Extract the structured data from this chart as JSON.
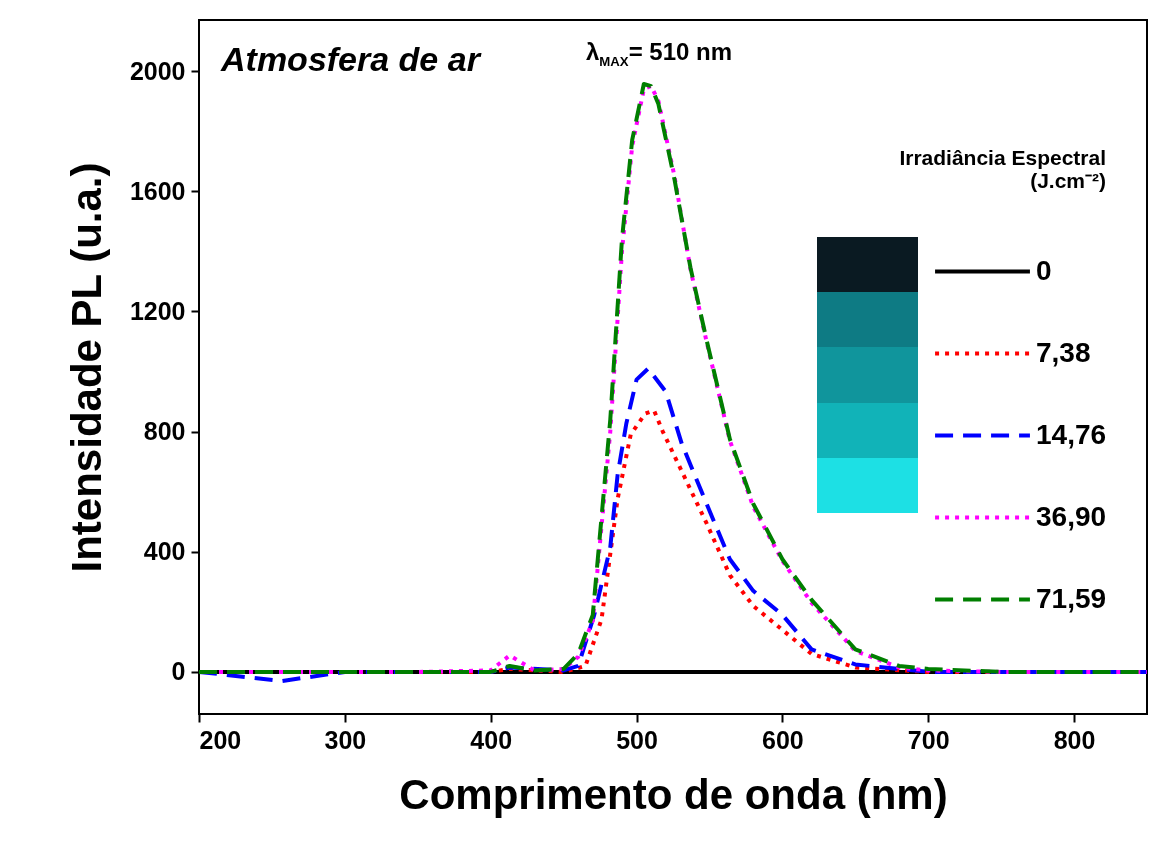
{
  "chart_data": {
    "type": "line",
    "xlabel": "Comprimento de onda (nm)",
    "ylabel": "Intensidade PL (u.a.)",
    "legend_title": "Irradiância Espectral (J.cm⁻²)",
    "legend": "right",
    "grid": false,
    "xlim": [
      200,
      850
    ],
    "ylim": [
      -140,
      2170
    ],
    "xticks": [
      200,
      300,
      400,
      500,
      600,
      700,
      800
    ],
    "yticks": [
      0,
      400,
      800,
      1200,
      1600,
      2000
    ],
    "annotations": [
      "Atmosfera de ar",
      "λ$_{MAX}$= 510 nm"
    ],
    "series": [
      {
        "name": "0",
        "color": "#000000",
        "line_style": "solid",
        "x": [
          200,
          850
        ],
        "values": [
          0,
          0
        ]
      },
      {
        "name": "7,38",
        "color": "#ff0000",
        "line_style": "dotted",
        "x": [
          200,
          300,
          400,
          413,
          450,
          465,
          476,
          487,
          496,
          506,
          512,
          518,
          531,
          548,
          564,
          580,
          600,
          620,
          650,
          700,
          850
        ],
        "values": [
          0,
          0,
          0,
          10,
          0,
          20,
          175,
          575,
          790,
          860,
          870,
          800,
          668,
          495,
          322,
          220,
          140,
          60,
          15,
          0,
          0
        ]
      },
      {
        "name": "14,76",
        "color": "#0000ff",
        "line_style": "dashed",
        "x": [
          200,
          257,
          300,
          400,
          413,
          450,
          460,
          471,
          482,
          487,
          493,
          500,
          508,
          520,
          531,
          548,
          564,
          580,
          600,
          620,
          650,
          700,
          850
        ],
        "values": [
          0,
          -30,
          0,
          0,
          15,
          5,
          20,
          190,
          415,
          655,
          827,
          973,
          1010,
          933,
          760,
          560,
          375,
          270,
          190,
          75,
          25,
          0,
          0
        ]
      },
      {
        "name": "36,90",
        "color": "#ff00ff",
        "line_style": "dotted",
        "x": [
          200,
          250,
          300,
          350,
          400,
          413,
          430,
          450,
          460,
          470,
          482,
          490,
          497,
          505,
          510,
          515,
          526,
          537,
          548,
          564,
          580,
          600,
          620,
          650,
          680,
          700,
          750,
          800,
          850
        ],
        "values": [
          0,
          0,
          0,
          0,
          5,
          55,
          5,
          10,
          50,
          170,
          800,
          1400,
          1750,
          1940,
          1950,
          1900,
          1650,
          1340,
          1100,
          770,
          550,
          370,
          230,
          70,
          15,
          5,
          0,
          0,
          0
        ]
      },
      {
        "name": "71,59",
        "color": "#007f00",
        "line_style": "dashed",
        "x": [
          200,
          250,
          300,
          350,
          400,
          413,
          430,
          450,
          460,
          470,
          482,
          490,
          497,
          505,
          510,
          515,
          526,
          537,
          548,
          564,
          580,
          600,
          620,
          650,
          680,
          700,
          750,
          800,
          850
        ],
        "values": [
          0,
          0,
          0,
          0,
          0,
          20,
          5,
          10,
          60,
          190,
          840,
          1440,
          1770,
          1957,
          1950,
          1890,
          1640,
          1345,
          1105,
          775,
          560,
          375,
          240,
          75,
          20,
          10,
          0,
          0,
          0
        ]
      }
    ]
  }
}
